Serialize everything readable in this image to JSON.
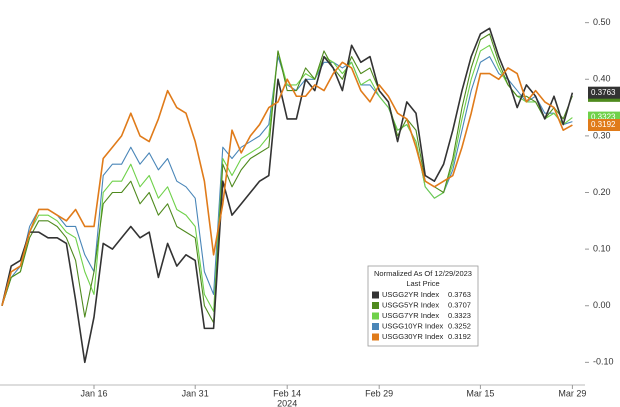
{
  "chart_data": {
    "type": "line",
    "categories": [
      null,
      null,
      null,
      null,
      null,
      null,
      null,
      null,
      null,
      null,
      "Jan 16",
      null,
      null,
      null,
      null,
      null,
      null,
      null,
      null,
      null,
      null,
      "Jan 31",
      null,
      null,
      null,
      null,
      null,
      null,
      null,
      null,
      null,
      "Feb 14",
      null,
      null,
      null,
      null,
      null,
      null,
      null,
      null,
      null,
      "Feb 29",
      null,
      null,
      null,
      null,
      null,
      null,
      null,
      null,
      null,
      null,
      "Mar 15",
      null,
      null,
      null,
      null,
      null,
      null,
      null,
      null,
      null,
      "Mar 29"
    ],
    "year_label": "2024",
    "legend_title": "Normalized As Of 12/29/2023",
    "legend_subtitle": "Last Price",
    "ylim": [
      -0.14,
      0.54
    ],
    "yticks": [
      {
        "value": 0.5,
        "label": "0.50"
      },
      {
        "value": 0.4,
        "label": "0.40"
      },
      {
        "value": 0.3,
        "label": "0.30"
      },
      {
        "value": 0.2,
        "label": "0.20"
      },
      {
        "value": 0.1,
        "label": "0.10"
      },
      {
        "value": 0,
        "label": "0.00"
      },
      {
        "value": -0.1,
        "label": "-0.10"
      }
    ],
    "series": [
      {
        "name": "USGG2YR Index",
        "color": "#333333",
        "values": [
          0.0,
          0.07,
          0.08,
          0.13,
          0.13,
          0.12,
          0.12,
          0.11,
          0.01,
          -0.1,
          -0.02,
          0.11,
          0.1,
          0.12,
          0.14,
          0.12,
          0.13,
          0.05,
          0.11,
          0.07,
          0.09,
          0.08,
          -0.04,
          -0.04,
          0.22,
          0.16,
          0.18,
          0.2,
          0.22,
          0.23,
          0.4,
          0.33,
          0.33,
          0.4,
          0.38,
          0.44,
          0.42,
          0.38,
          0.46,
          0.43,
          0.44,
          0.38,
          0.36,
          0.29,
          0.36,
          0.34,
          0.23,
          0.22,
          0.25,
          0.31,
          0.38,
          0.44,
          0.48,
          0.49,
          0.44,
          0.4,
          0.35,
          0.39,
          0.37,
          0.33,
          0.37,
          0.32,
          0.3763
        ]
      },
      {
        "name": "USGG5YR Index",
        "color": "#4f8a1e",
        "values": [
          0.0,
          0.05,
          0.06,
          0.12,
          0.15,
          0.15,
          0.14,
          0.12,
          0.08,
          -0.02,
          0.06,
          0.18,
          0.2,
          0.2,
          0.22,
          0.18,
          0.2,
          0.16,
          0.18,
          0.14,
          0.13,
          0.12,
          0.0,
          -0.03,
          0.25,
          0.21,
          0.24,
          0.26,
          0.27,
          0.28,
          0.45,
          0.38,
          0.38,
          0.42,
          0.4,
          0.45,
          0.42,
          0.4,
          0.44,
          0.41,
          0.42,
          0.38,
          0.36,
          0.3,
          0.33,
          0.31,
          0.22,
          0.21,
          0.2,
          0.26,
          0.35,
          0.42,
          0.47,
          0.48,
          0.43,
          0.39,
          0.37,
          0.37,
          0.36,
          0.33,
          0.35,
          0.33,
          0.3707
        ]
      },
      {
        "name": "USGG7YR Index",
        "color": "#6fd14a",
        "values": [
          0.0,
          0.05,
          0.06,
          0.13,
          0.16,
          0.16,
          0.15,
          0.13,
          0.12,
          0.06,
          0.02,
          0.2,
          0.22,
          0.22,
          0.25,
          0.21,
          0.23,
          0.19,
          0.21,
          0.17,
          0.16,
          0.14,
          0.02,
          -0.01,
          0.26,
          0.23,
          0.26,
          0.27,
          0.28,
          0.3,
          0.45,
          0.39,
          0.39,
          0.41,
          0.4,
          0.44,
          0.43,
          0.41,
          0.43,
          0.39,
          0.4,
          0.37,
          0.35,
          0.31,
          0.32,
          0.29,
          0.21,
          0.19,
          0.2,
          0.25,
          0.33,
          0.4,
          0.45,
          0.46,
          0.42,
          0.39,
          0.37,
          0.36,
          0.36,
          0.33,
          0.34,
          0.32,
          0.3323
        ]
      },
      {
        "name": "USGG10YR Index",
        "color": "#4a86b8",
        "values": [
          0.0,
          0.05,
          0.07,
          0.14,
          0.17,
          0.17,
          0.16,
          0.14,
          0.14,
          0.09,
          0.06,
          0.23,
          0.25,
          0.25,
          0.28,
          0.25,
          0.27,
          0.24,
          0.26,
          0.22,
          0.21,
          0.19,
          0.06,
          0.02,
          0.28,
          0.26,
          0.28,
          0.29,
          0.3,
          0.32,
          0.44,
          0.39,
          0.38,
          0.4,
          0.4,
          0.43,
          0.43,
          0.42,
          0.43,
          0.39,
          0.39,
          0.37,
          0.35,
          0.31,
          0.32,
          0.29,
          0.21,
          0.19,
          0.2,
          0.24,
          0.31,
          0.38,
          0.43,
          0.44,
          0.41,
          0.4,
          0.38,
          0.36,
          0.37,
          0.34,
          0.34,
          0.32,
          0.3252
        ]
      },
      {
        "name": "USGG30YR Index",
        "color": "#e07b1a",
        "values": [
          0.0,
          0.06,
          0.07,
          0.13,
          0.17,
          0.17,
          0.16,
          0.15,
          0.17,
          0.14,
          0.14,
          0.26,
          0.28,
          0.3,
          0.34,
          0.3,
          0.29,
          0.33,
          0.38,
          0.35,
          0.34,
          0.29,
          0.22,
          0.09,
          0.18,
          0.31,
          0.27,
          0.3,
          0.32,
          0.35,
          0.36,
          0.4,
          0.37,
          0.37,
          0.39,
          0.38,
          0.41,
          0.43,
          0.42,
          0.38,
          0.36,
          0.39,
          0.37,
          0.34,
          0.33,
          0.28,
          0.22,
          0.21,
          0.22,
          0.23,
          0.28,
          0.34,
          0.41,
          0.41,
          0.4,
          0.42,
          0.41,
          0.36,
          0.38,
          0.36,
          0.35,
          0.31,
          0.3192
        ]
      }
    ]
  }
}
